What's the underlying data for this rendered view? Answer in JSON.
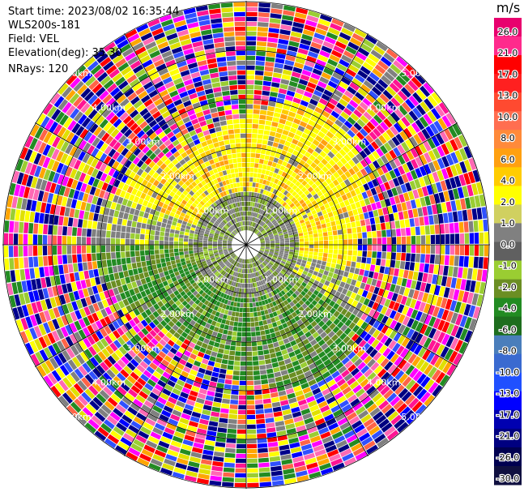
{
  "info": {
    "start_time": "Start time: 2023/08/02 16:35:44",
    "instrument": "WLS200s-181",
    "field": "Field: VEL",
    "elevation": "Elevation(deg): 35.30",
    "nrays": "NRays: 120"
  },
  "range_rings": {
    "labels": [
      "1.00km",
      "2.00km",
      "3.00km",
      "4.00km",
      "5.00km"
    ]
  },
  "colorbar": {
    "unit": "m/s",
    "ticks": [
      "26.0",
      "21.0",
      "17.0",
      "13.0",
      "10.0",
      "8.0",
      "6.0",
      "4.0",
      "2.0",
      "1.0",
      "0.0",
      "-1.0",
      "-2.0",
      "-4.0",
      "-6.0",
      "-8.0",
      "-10.0",
      "-13.0",
      "-17.0",
      "-21.0",
      "-26.0",
      "-30.0"
    ],
    "colors": [
      "#e8006e",
      "#ff2a8c",
      "#ff0000",
      "#ff2020",
      "#ff4a30",
      "#ff6e50",
      "#ff8a3a",
      "#ffa010",
      "#ffcc00",
      "#ffff00",
      "#d0d060",
      "#808080",
      "#606060",
      "#9acd32",
      "#6b8e23",
      "#228b22",
      "#1e6e1e",
      "#4a7ebb",
      "#3a6ad0",
      "#2050ff",
      "#0000ff",
      "#0000b0",
      "#000080",
      "#000050",
      "#101040"
    ]
  },
  "icons": {
    "legend": "colorbar-icon"
  }
}
